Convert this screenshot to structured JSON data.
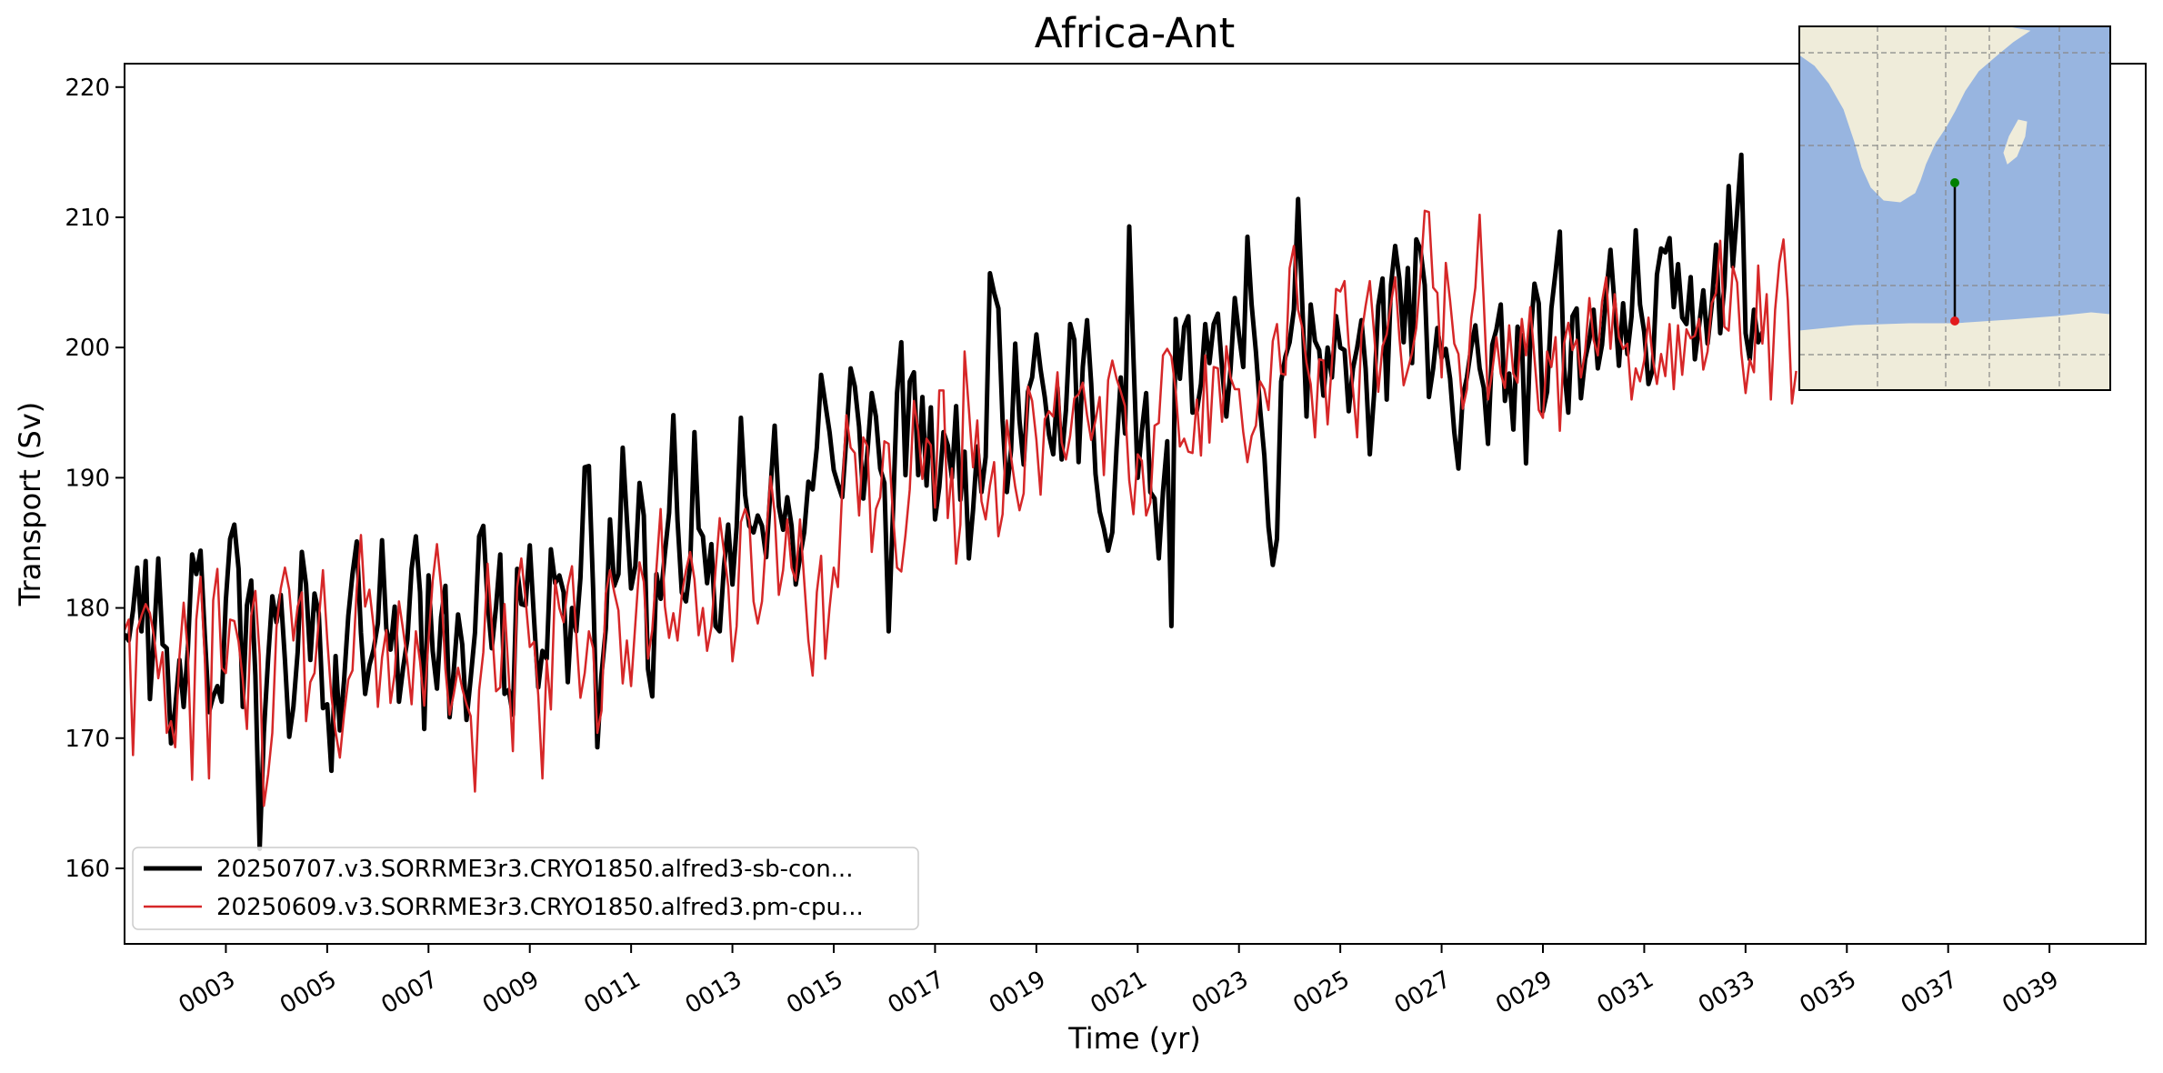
{
  "chart_data": {
    "type": "line",
    "title": "Africa-Ant",
    "xlabel": "Time (yr)",
    "ylabel": "Transport (Sv)",
    "xlim": [
      1.0,
      40.9
    ],
    "ylim": [
      154.2,
      221.8
    ],
    "grid": false,
    "legend_position": "lower-left",
    "x_ticks": [
      3,
      5,
      7,
      9,
      11,
      13,
      15,
      17,
      19,
      21,
      23,
      25,
      27,
      29,
      31,
      33,
      35,
      37,
      39
    ],
    "x_tick_labels": [
      "0003",
      "0005",
      "0007",
      "0009",
      "0011",
      "0013",
      "0015",
      "0017",
      "0019",
      "0021",
      "0023",
      "0025",
      "0027",
      "0029",
      "0031",
      "0033",
      "0035",
      "0037",
      "0039"
    ],
    "y_ticks": [
      160,
      170,
      180,
      190,
      200,
      210,
      220
    ],
    "y_tick_labels": [
      "160",
      "170",
      "180",
      "190",
      "200",
      "210",
      "220"
    ],
    "series_sampling": "monthly",
    "series": [
      {
        "name": "20250707.v3.SORRME3r3.CRYO1850.alfred3-sb-con...",
        "color": "#000000",
        "x_start": 1.0,
        "x_step": 0.0833333,
        "values": [
          178.0,
          177.5,
          179.8,
          183.1,
          178.2,
          183.6,
          173.0,
          177.9,
          183.8,
          177.2,
          176.9,
          169.6,
          172.3,
          176.0,
          172.4,
          176.8,
          184.1,
          182.6,
          184.4,
          178.0,
          172.0,
          173.2,
          174.0,
          172.8,
          180.6,
          185.3,
          186.4,
          183.0,
          172.4,
          180.2,
          182.1,
          174.8,
          161.5,
          170.4,
          176.1,
          180.9,
          178.9,
          181.0,
          176.0,
          170.1,
          172.4,
          176.6,
          184.3,
          181.8,
          176.0,
          181.1,
          179.6,
          172.3,
          172.6,
          167.5,
          176.3,
          170.6,
          174.4,
          179.4,
          182.6,
          185.1,
          178.1,
          173.4,
          175.6,
          176.8,
          178.8,
          185.2,
          178.4,
          176.8,
          180.1,
          172.8,
          175.4,
          177.6,
          183.0,
          185.5,
          181.2,
          170.7,
          182.5,
          176.7,
          173.8,
          179.3,
          181.7,
          171.6,
          175.2,
          179.5,
          177.2,
          171.4,
          174.6,
          178.1,
          185.5,
          186.3,
          180.4,
          176.9,
          180.1,
          184.1,
          173.4,
          173.7,
          171.8,
          183.0,
          180.3,
          180.2,
          184.8,
          179.1,
          173.9,
          176.7,
          176.1,
          184.5,
          181.9,
          182.5,
          181.2,
          174.3,
          180.0,
          178.2,
          182.3,
          190.8,
          190.9,
          181.4,
          169.3,
          174.9,
          178.4,
          186.8,
          181.7,
          182.6,
          192.3,
          186.8,
          181.5,
          183.2,
          189.6,
          187.1,
          175.3,
          173.2,
          182.6,
          180.7,
          184.2,
          187.3,
          194.8,
          186.7,
          181.2,
          180.5,
          183.3,
          193.5,
          186.1,
          185.5,
          181.9,
          184.9,
          178.6,
          178.2,
          183.2,
          186.4,
          181.8,
          186.2,
          194.6,
          188.7,
          186.3,
          185.8,
          187.1,
          186.3,
          183.9,
          189.1,
          194.0,
          187.8,
          186.0,
          188.5,
          186.3,
          181.8,
          183.9,
          185.8,
          189.7,
          189.1,
          192.3,
          197.9,
          195.7,
          193.5,
          190.6,
          189.5,
          188.5,
          193.1,
          198.4,
          197.0,
          193.9,
          188.4,
          192.0,
          196.5,
          194.7,
          190.7,
          189.6,
          178.2,
          187.0,
          196.5,
          200.4,
          190.2,
          197.4,
          198.1,
          190.2,
          196.2,
          189.4,
          195.4,
          186.8,
          189.3,
          193.5,
          192.5,
          190.0,
          195.5,
          188.3,
          192.0,
          183.8,
          187.5,
          192.4,
          188.9,
          191.6,
          205.7,
          204.2,
          203.0,
          194.4,
          188.9,
          192.1,
          200.3,
          194.4,
          191.0,
          196.6,
          197.7,
          201.0,
          198.3,
          196.2,
          193.3,
          191.8,
          196.9,
          191.4,
          195.2,
          201.8,
          200.6,
          191.2,
          198.5,
          202.1,
          197.2,
          190.3,
          187.4,
          186.1,
          184.4,
          185.8,
          192.3,
          197.7,
          193.4,
          209.3,
          199.3,
          190.0,
          193.6,
          196.5,
          188.9,
          188.4,
          183.8,
          188.9,
          192.8,
          178.6,
          202.2,
          197.6,
          201.6,
          202.4,
          195.0,
          195.1,
          197.2,
          201.8,
          198.8,
          201.8,
          202.6,
          198.4,
          194.7,
          198.3,
          203.8,
          201.0,
          198.5,
          208.5,
          203.3,
          199.7,
          195.3,
          191.7,
          186.2,
          183.3,
          185.3,
          197.4,
          199.3,
          200.4,
          202.9,
          211.4,
          203.2,
          194.7,
          203.3,
          200.5,
          199.8,
          196.3,
          200.0,
          197.7,
          202.4,
          200.0,
          199.8,
          195.1,
          198.4,
          200.0,
          202.1,
          198.4,
          191.8,
          196.4,
          203.2,
          205.3,
          196.0,
          204.8,
          207.8,
          205.3,
          200.4,
          206.1,
          198.8,
          208.3,
          207.5,
          204.8,
          196.2,
          198.4,
          201.5,
          199.2,
          199.9,
          197.6,
          193.5,
          190.7,
          196.2,
          197.7,
          200.0,
          201.7,
          198.4,
          196.9,
          192.6,
          200.2,
          201.4,
          203.3,
          195.9,
          198.0,
          193.7,
          201.6,
          200.7,
          191.1,
          200.6,
          204.9,
          203.4,
          195.1,
          196.6,
          203.0,
          205.8,
          208.9,
          198.5,
          195.0,
          202.4,
          203.0,
          196.1,
          199.1,
          200.6,
          202.9,
          198.4,
          200.2,
          204.1,
          207.5,
          203.2,
          198.6,
          203.4,
          199.5,
          202.4,
          209.0,
          203.3,
          201.2,
          197.2,
          198.3,
          205.6,
          207.6,
          207.3,
          208.4,
          203.1,
          206.4,
          202.3,
          201.8,
          205.4,
          199.1,
          201.7,
          204.4,
          200.3,
          203.3,
          207.9,
          201.1,
          204.8,
          212.4,
          206.2,
          210.4,
          214.8,
          201.1,
          199.1,
          202.9,
          200.4,
          201.2
        ]
      },
      {
        "name": "20250609.v3.SORRME3r3.CRYO1850.alfred3.pm-cpu...",
        "color": "#d62728",
        "x_start": 1.0,
        "x_step": 0.0833333,
        "values": [
          178.3,
          179.1,
          168.7,
          178.3,
          179.4,
          180.3,
          179.6,
          177.8,
          174.6,
          176.6,
          170.4,
          171.3,
          169.3,
          176.3,
          180.4,
          176.6,
          166.8,
          179.1,
          182.4,
          176.2,
          166.9,
          180.6,
          183.0,
          175.4,
          175.0,
          179.1,
          179.0,
          177.4,
          174.5,
          170.7,
          179.4,
          181.3,
          176.4,
          164.8,
          167.2,
          170.4,
          178.5,
          181.5,
          183.1,
          181.4,
          177.5,
          180.1,
          181.2,
          171.3,
          174.3,
          175.0,
          179.0,
          182.9,
          177.6,
          173.2,
          170.5,
          168.5,
          171.8,
          174.5,
          175.2,
          181.5,
          185.6,
          180.1,
          181.4,
          178.6,
          172.4,
          176.2,
          178.3,
          172.7,
          174.9,
          180.5,
          178.3,
          175.8,
          172.6,
          178.2,
          175.9,
          172.5,
          177.5,
          182.1,
          184.9,
          181.6,
          175.3,
          171.8,
          173.4,
          175.4,
          173.8,
          172.6,
          171.7,
          165.9,
          173.7,
          176.6,
          183.4,
          178.7,
          173.6,
          173.9,
          180.3,
          174.8,
          169.0,
          181.6,
          183.8,
          180.6,
          177.0,
          177.4,
          173.3,
          166.9,
          176.0,
          172.2,
          182.1,
          180.0,
          178.9,
          181.7,
          183.2,
          177.9,
          173.1,
          175.0,
          178.2,
          176.9,
          170.4,
          172.1,
          181.1,
          182.9,
          181.2,
          179.8,
          174.2,
          177.5,
          174.0,
          178.8,
          183.5,
          182.0,
          176.1,
          178.3,
          183.0,
          187.6,
          180.1,
          177.7,
          179.6,
          177.5,
          181.0,
          182.9,
          184.3,
          182.2,
          177.9,
          180.0,
          176.7,
          178.5,
          182.9,
          186.9,
          184.3,
          181.7,
          175.9,
          178.6,
          186.6,
          187.6,
          186.7,
          180.5,
          178.8,
          180.5,
          185.4,
          190.1,
          187.3,
          181.0,
          182.9,
          186.8,
          183.1,
          182.1,
          186.8,
          182.1,
          177.5,
          174.8,
          181.2,
          184.0,
          176.1,
          180.0,
          183.1,
          181.6,
          189.1,
          194.8,
          192.3,
          191.9,
          187.1,
          193.1,
          192.4,
          184.3,
          187.6,
          188.5,
          192.8,
          192.6,
          187.3,
          183.1,
          182.8,
          185.6,
          189.1,
          195.9,
          193.6,
          189.9,
          193.0,
          192.5,
          187.7,
          196.7,
          196.7,
          186.9,
          190.7,
          183.4,
          186.4,
          199.7,
          195.3,
          190.8,
          194.4,
          188.2,
          186.8,
          189.4,
          191.2,
          185.5,
          187.2,
          194.4,
          191.6,
          189.3,
          187.5,
          188.8,
          197.0,
          195.9,
          192.9,
          188.7,
          194.5,
          195.1,
          194.7,
          198.1,
          192.7,
          191.4,
          193.2,
          196.1,
          196.4,
          197.3,
          194.8,
          192.9,
          194.4,
          196.2,
          190.2,
          197.5,
          199.0,
          197.6,
          196.6,
          195.5,
          189.8,
          187.2,
          191.8,
          191.3,
          187.1,
          188.1,
          194.0,
          194.2,
          199.4,
          199.9,
          199.3,
          196.7,
          192.4,
          193.0,
          192.0,
          191.9,
          196.0,
          191.7,
          199.4,
          192.7,
          198.5,
          198.4,
          194.3,
          200.1,
          197.7,
          196.8,
          196.8,
          193.5,
          191.2,
          193.2,
          194.0,
          197.4,
          196.8,
          195.2,
          200.5,
          201.8,
          198.0,
          197.9,
          206.1,
          207.8,
          202.9,
          201.5,
          198.8,
          197.2,
          193.1,
          199.1,
          199.0,
          194.1,
          198.8,
          204.5,
          204.3,
          205.1,
          200.2,
          196.8,
          193.1,
          201.0,
          203.2,
          205.1,
          201.1,
          196.6,
          200.1,
          201.0,
          203.4,
          205.4,
          200.8,
          197.1,
          198.3,
          199.6,
          201.5,
          205.6,
          210.5,
          210.4,
          204.6,
          204.2,
          197.7,
          206.5,
          203.6,
          200.3,
          199.5,
          195.3,
          196.8,
          202.2,
          204.6,
          210.2,
          203.4,
          196.0,
          198.2,
          200.8,
          198.0,
          196.9,
          201.7,
          198.0,
          197.3,
          202.2,
          199.4,
          203.1,
          199.2,
          195.2,
          194.6,
          199.7,
          198.5,
          200.8,
          193.6,
          200.3,
          201.9,
          199.8,
          200.6,
          197.7,
          199.7,
          203.8,
          200.6,
          199.4,
          203.5,
          205.4,
          199.9,
          204.1,
          200.8,
          199.9,
          200.3,
          196.0,
          198.4,
          197.4,
          199.0,
          202.3,
          199.2,
          197.2,
          199.5,
          197.8,
          201.8,
          196.8,
          201.7,
          197.9,
          201.4,
          200.7,
          200.9,
          202.2,
          198.3,
          199.7,
          203.4,
          204.2,
          208.2,
          201.6,
          201.3,
          206.2,
          205.0,
          199.6,
          196.5,
          199.1,
          198.1,
          206.3,
          200.3,
          204.1,
          196.0,
          202.9,
          206.5,
          208.3,
          203.6,
          195.7,
          198.2
        ]
      }
    ],
    "inset_map": {
      "type": "map",
      "ocean_color": "#98b5e0",
      "land_color": "#efecda",
      "section_start_color": "#008000",
      "section_end_color": "#e31a1c",
      "section_line_color": "#000000"
    }
  }
}
